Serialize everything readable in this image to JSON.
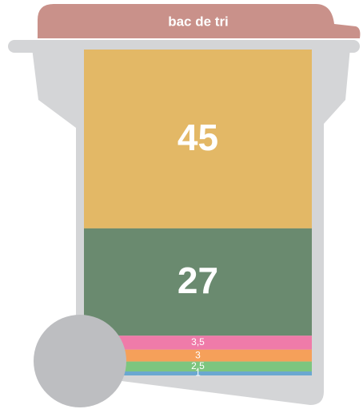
{
  "chart_data": {
    "type": "stacked-bar",
    "title": "bac de tri",
    "values": [
      45,
      27,
      3.5,
      3,
      2.5,
      1
    ],
    "value_labels": [
      "45",
      "27",
      "3,5",
      "3",
      "2,5",
      "1"
    ],
    "colors": [
      "#e3b866",
      "#6a8a6f",
      "#ef7ba9",
      "#f5a05a",
      "#7dc57f",
      "#6aa8d0"
    ]
  }
}
